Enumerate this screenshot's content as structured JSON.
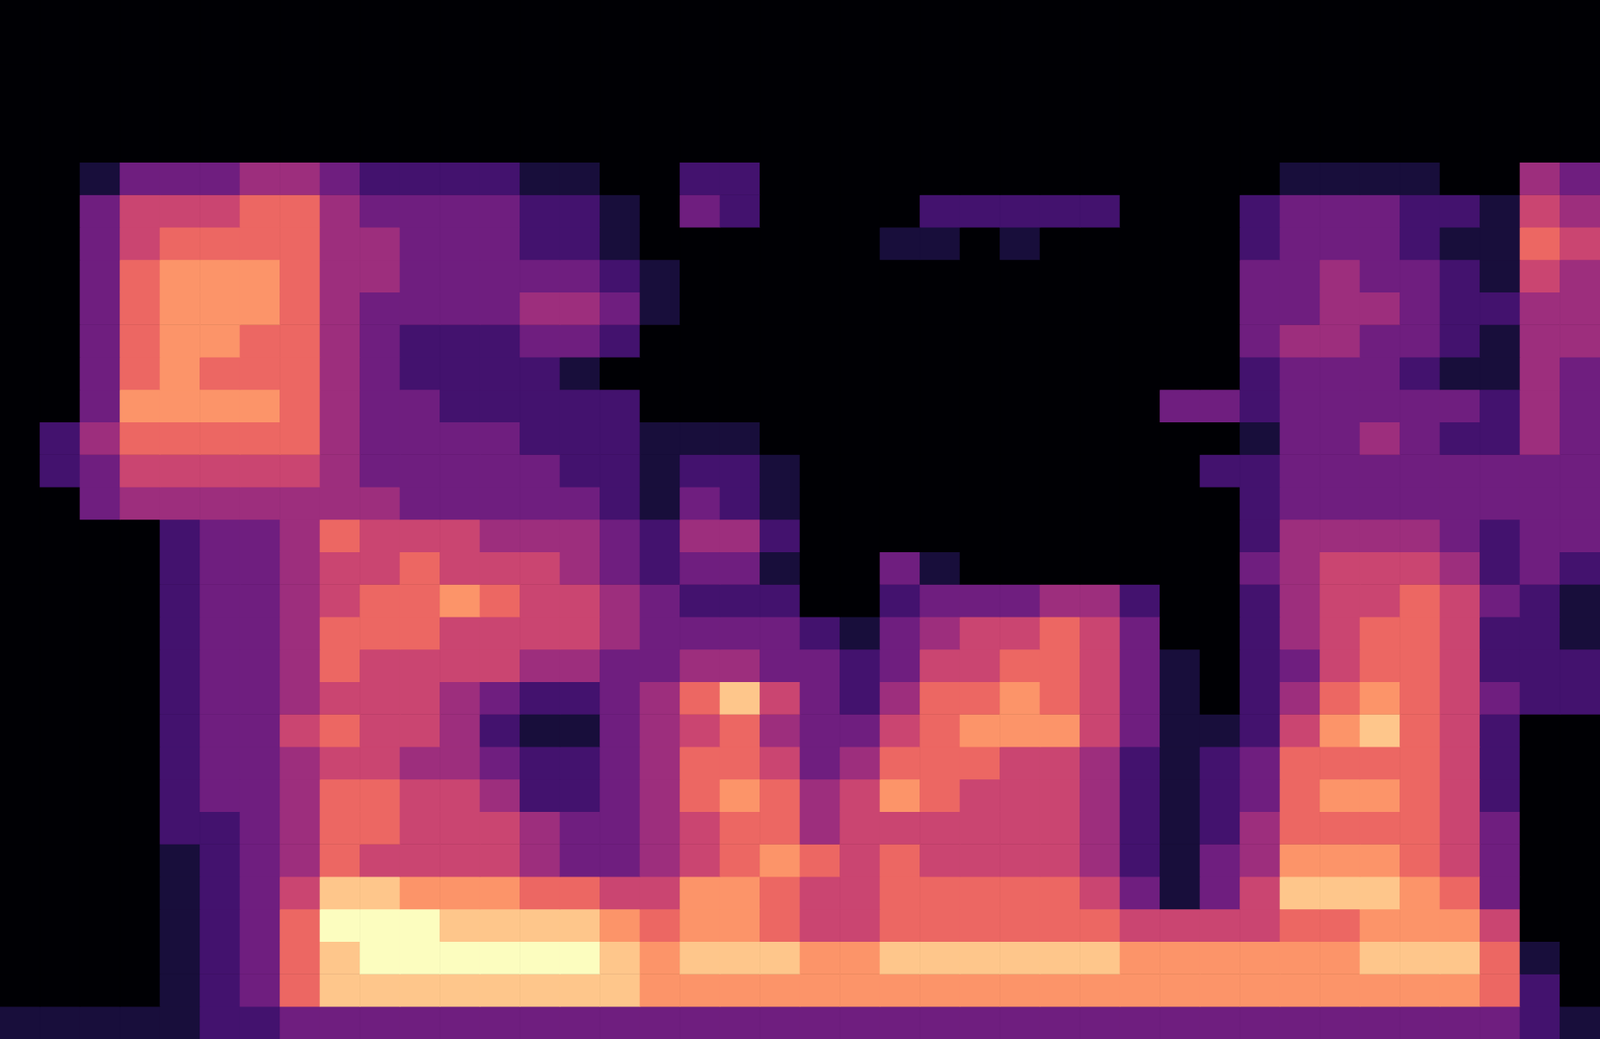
{
  "chart_data": {
    "type": "heatmap",
    "tick_labels": false,
    "zlim": [
      0,
      9
    ],
    "cells": [
      [
        0,
        0,
        0,
        0,
        0,
        0,
        0,
        0,
        0,
        0,
        0,
        0,
        0,
        0,
        0,
        0,
        0,
        0,
        0,
        0,
        0,
        0,
        0,
        0,
        0,
        0,
        0,
        0,
        0,
        0,
        0,
        0,
        0,
        0,
        0,
        0,
        0,
        0,
        0,
        0
      ],
      [
        0,
        0,
        0,
        0,
        0,
        0,
        0,
        0,
        0,
        0,
        0,
        0,
        0,
        0,
        0,
        0,
        0,
        0,
        0,
        0,
        0,
        0,
        0,
        0,
        0,
        0,
        0,
        0,
        0,
        0,
        0,
        0,
        0,
        0,
        0,
        0,
        0,
        0,
        0,
        0
      ],
      [
        0,
        0,
        0,
        0,
        0,
        0,
        0,
        0,
        0,
        0,
        0,
        0,
        0,
        0,
        0,
        0,
        0,
        0,
        0,
        0,
        0,
        0,
        0,
        0,
        0,
        0,
        0,
        0,
        0,
        0,
        0,
        0,
        0,
        0,
        0,
        0,
        0,
        0,
        0,
        0
      ],
      [
        0,
        0,
        0,
        0,
        0,
        0,
        0,
        0,
        0,
        0,
        0,
        0,
        0,
        0,
        0,
        0,
        0,
        0,
        0,
        0,
        0,
        0,
        0,
        0,
        0,
        0,
        0,
        0,
        0,
        0,
        0,
        0,
        0,
        0,
        0,
        0,
        0,
        0,
        0,
        0
      ],
      [
        0,
        0,
        0,
        0,
        0,
        0,
        0,
        0,
        0,
        0,
        0,
        0,
        0,
        0,
        0,
        0,
        0,
        0,
        0,
        0,
        0,
        0,
        0,
        0,
        0,
        0,
        0,
        0,
        0,
        0,
        0,
        0,
        0,
        0,
        0,
        0,
        0,
        0,
        0,
        0
      ],
      [
        0,
        0,
        1,
        3,
        3,
        3,
        4,
        4,
        3,
        2,
        2,
        2,
        2,
        1,
        1,
        0,
        0,
        2,
        2,
        0,
        0,
        0,
        0,
        0,
        0,
        0,
        0,
        0,
        0,
        0,
        0,
        0,
        1,
        1,
        1,
        1,
        0,
        0,
        4,
        3
      ],
      [
        0,
        0,
        3,
        5,
        5,
        5,
        6,
        6,
        4,
        3,
        3,
        3,
        3,
        2,
        2,
        1,
        0,
        3,
        2,
        0,
        0,
        0,
        0,
        2,
        2,
        2,
        2,
        2,
        0,
        0,
        0,
        2,
        3,
        3,
        3,
        2,
        2,
        1,
        5,
        4
      ],
      [
        0,
        0,
        3,
        5,
        6,
        6,
        6,
        6,
        4,
        4,
        3,
        3,
        3,
        2,
        2,
        1,
        0,
        0,
        0,
        0,
        0,
        0,
        1,
        1,
        0,
        1,
        0,
        0,
        0,
        0,
        0,
        2,
        3,
        3,
        3,
        2,
        1,
        1,
        6,
        5
      ],
      [
        0,
        0,
        3,
        6,
        7,
        7,
        7,
        6,
        4,
        4,
        3,
        3,
        3,
        3,
        3,
        2,
        1,
        0,
        0,
        0,
        0,
        0,
        0,
        0,
        0,
        0,
        0,
        0,
        0,
        0,
        0,
        3,
        3,
        4,
        3,
        3,
        2,
        1,
        5,
        4
      ],
      [
        0,
        0,
        3,
        6,
        7,
        7,
        7,
        6,
        4,
        3,
        3,
        3,
        3,
        4,
        4,
        3,
        1,
        0,
        0,
        0,
        0,
        0,
        0,
        0,
        0,
        0,
        0,
        0,
        0,
        0,
        0,
        3,
        3,
        4,
        4,
        3,
        2,
        2,
        4,
        4
      ],
      [
        0,
        0,
        3,
        6,
        7,
        7,
        6,
        6,
        4,
        3,
        2,
        2,
        2,
        3,
        3,
        2,
        0,
        0,
        0,
        0,
        0,
        0,
        0,
        0,
        0,
        0,
        0,
        0,
        0,
        0,
        0,
        3,
        4,
        4,
        3,
        3,
        2,
        1,
        4,
        4
      ],
      [
        0,
        0,
        3,
        6,
        7,
        6,
        6,
        6,
        4,
        3,
        2,
        2,
        2,
        2,
        1,
        0,
        0,
        0,
        0,
        0,
        0,
        0,
        0,
        0,
        0,
        0,
        0,
        0,
        0,
        0,
        0,
        2,
        3,
        3,
        3,
        2,
        1,
        1,
        4,
        3
      ],
      [
        0,
        0,
        3,
        7,
        7,
        7,
        7,
        6,
        4,
        3,
        3,
        2,
        2,
        2,
        2,
        2,
        0,
        0,
        0,
        0,
        0,
        0,
        0,
        0,
        0,
        0,
        0,
        0,
        0,
        3,
        3,
        2,
        3,
        3,
        3,
        3,
        3,
        2,
        4,
        3
      ],
      [
        0,
        2,
        4,
        6,
        6,
        6,
        6,
        6,
        4,
        3,
        3,
        3,
        3,
        2,
        2,
        2,
        1,
        1,
        1,
        0,
        0,
        0,
        0,
        0,
        0,
        0,
        0,
        0,
        0,
        0,
        0,
        1,
        3,
        3,
        4,
        3,
        2,
        2,
        4,
        3
      ],
      [
        0,
        2,
        3,
        5,
        5,
        5,
        5,
        5,
        4,
        3,
        3,
        3,
        3,
        3,
        2,
        2,
        1,
        2,
        2,
        1,
        0,
        0,
        0,
        0,
        0,
        0,
        0,
        0,
        0,
        0,
        2,
        2,
        3,
        3,
        3,
        3,
        3,
        3,
        3,
        3
      ],
      [
        0,
        0,
        3,
        4,
        4,
        4,
        4,
        4,
        4,
        4,
        3,
        3,
        3,
        3,
        3,
        2,
        1,
        3,
        2,
        1,
        0,
        0,
        0,
        0,
        0,
        0,
        0,
        0,
        0,
        0,
        0,
        2,
        3,
        3,
        3,
        3,
        3,
        3,
        3,
        3
      ],
      [
        0,
        0,
        0,
        0,
        2,
        3,
        3,
        4,
        6,
        5,
        5,
        5,
        4,
        4,
        4,
        3,
        2,
        4,
        4,
        2,
        0,
        0,
        0,
        0,
        0,
        0,
        0,
        0,
        0,
        0,
        0,
        2,
        4,
        4,
        4,
        4,
        3,
        2,
        3,
        3
      ],
      [
        0,
        0,
        0,
        0,
        2,
        3,
        3,
        4,
        5,
        5,
        6,
        5,
        5,
        5,
        4,
        3,
        2,
        3,
        3,
        1,
        0,
        0,
        3,
        1,
        0,
        0,
        0,
        0,
        0,
        0,
        0,
        3,
        4,
        5,
        5,
        5,
        4,
        2,
        3,
        2
      ],
      [
        0,
        0,
        0,
        0,
        2,
        3,
        3,
        4,
        5,
        6,
        6,
        7,
        6,
        5,
        5,
        4,
        3,
        2,
        2,
        2,
        0,
        0,
        2,
        3,
        3,
        3,
        4,
        4,
        2,
        0,
        0,
        2,
        4,
        5,
        5,
        6,
        5,
        3,
        2,
        1
      ],
      [
        0,
        0,
        0,
        0,
        2,
        3,
        3,
        4,
        6,
        6,
        6,
        5,
        5,
        5,
        5,
        4,
        3,
        3,
        3,
        3,
        2,
        1,
        3,
        4,
        5,
        5,
        6,
        5,
        3,
        0,
        0,
        2,
        4,
        5,
        6,
        6,
        5,
        2,
        2,
        1
      ],
      [
        0,
        0,
        0,
        0,
        2,
        3,
        3,
        4,
        6,
        5,
        5,
        5,
        5,
        4,
        4,
        3,
        3,
        4,
        4,
        3,
        3,
        2,
        3,
        5,
        5,
        6,
        6,
        5,
        3,
        1,
        0,
        2,
        3,
        5,
        6,
        6,
        5,
        2,
        2,
        2
      ],
      [
        0,
        0,
        0,
        0,
        2,
        3,
        3,
        4,
        5,
        5,
        5,
        4,
        3,
        2,
        2,
        3,
        4,
        6,
        8,
        5,
        3,
        2,
        4,
        6,
        6,
        7,
        6,
        5,
        3,
        1,
        0,
        2,
        4,
        6,
        7,
        6,
        5,
        3,
        2,
        2
      ],
      [
        0,
        0,
        0,
        0,
        2,
        3,
        3,
        5,
        6,
        5,
        5,
        4,
        2,
        1,
        1,
        3,
        4,
        5,
        6,
        4,
        3,
        3,
        5,
        6,
        7,
        7,
        7,
        5,
        3,
        1,
        1,
        2,
        5,
        7,
        8,
        6,
        5,
        2,
        0,
        0
      ],
      [
        0,
        0,
        0,
        0,
        2,
        3,
        3,
        4,
        5,
        5,
        4,
        4,
        3,
        2,
        2,
        3,
        4,
        6,
        6,
        5,
        3,
        4,
        6,
        6,
        6,
        5,
        5,
        4,
        2,
        1,
        2,
        3,
        6,
        6,
        6,
        6,
        5,
        2,
        0,
        0
      ],
      [
        0,
        0,
        0,
        0,
        2,
        3,
        3,
        4,
        6,
        6,
        5,
        5,
        4,
        2,
        2,
        3,
        4,
        6,
        7,
        6,
        4,
        5,
        7,
        6,
        5,
        5,
        5,
        4,
        2,
        1,
        2,
        3,
        6,
        7,
        7,
        6,
        5,
        2,
        0,
        0
      ],
      [
        0,
        0,
        0,
        0,
        2,
        2,
        3,
        4,
        6,
        6,
        5,
        5,
        5,
        4,
        3,
        3,
        4,
        5,
        6,
        6,
        4,
        5,
        5,
        5,
        5,
        5,
        5,
        4,
        2,
        1,
        2,
        4,
        6,
        6,
        6,
        6,
        5,
        3,
        0,
        0
      ],
      [
        0,
        0,
        0,
        0,
        1,
        2,
        3,
        4,
        6,
        5,
        5,
        5,
        5,
        4,
        3,
        3,
        4,
        5,
        6,
        7,
        6,
        5,
        6,
        5,
        5,
        5,
        5,
        4,
        2,
        1,
        3,
        4,
        7,
        7,
        7,
        6,
        5,
        3,
        0,
        0
      ],
      [
        0,
        0,
        0,
        0,
        1,
        2,
        3,
        5,
        8,
        8,
        7,
        7,
        7,
        6,
        6,
        5,
        5,
        7,
        7,
        6,
        5,
        5,
        6,
        6,
        6,
        6,
        6,
        5,
        3,
        1,
        3,
        5,
        8,
        8,
        8,
        7,
        6,
        3,
        0,
        0
      ],
      [
        0,
        0,
        0,
        0,
        1,
        2,
        3,
        6,
        9,
        9,
        9,
        8,
        8,
        8,
        8,
        7,
        6,
        7,
        7,
        6,
        5,
        5,
        6,
        6,
        6,
        6,
        6,
        6,
        5,
        5,
        5,
        5,
        6,
        6,
        7,
        7,
        7,
        5,
        0,
        0
      ],
      [
        0,
        0,
        0,
        0,
        1,
        2,
        3,
        6,
        8,
        9,
        9,
        9,
        9,
        9,
        9,
        8,
        7,
        8,
        8,
        8,
        7,
        7,
        8,
        8,
        8,
        8,
        8,
        8,
        7,
        7,
        7,
        7,
        7,
        7,
        8,
        8,
        8,
        6,
        1,
        0
      ],
      [
        0,
        0,
        0,
        0,
        1,
        2,
        3,
        6,
        8,
        8,
        8,
        8,
        8,
        8,
        8,
        8,
        7,
        7,
        7,
        7,
        7,
        7,
        7,
        7,
        7,
        7,
        7,
        7,
        7,
        7,
        7,
        7,
        7,
        7,
        7,
        7,
        7,
        6,
        2,
        0
      ],
      [
        1,
        1,
        1,
        1,
        1,
        2,
        2,
        3,
        3,
        3,
        3,
        3,
        3,
        3,
        3,
        3,
        3,
        3,
        3,
        3,
        3,
        3,
        3,
        3,
        3,
        3,
        3,
        3,
        3,
        3,
        3,
        3,
        3,
        3,
        3,
        3,
        3,
        3,
        2,
        1
      ]
    ]
  }
}
